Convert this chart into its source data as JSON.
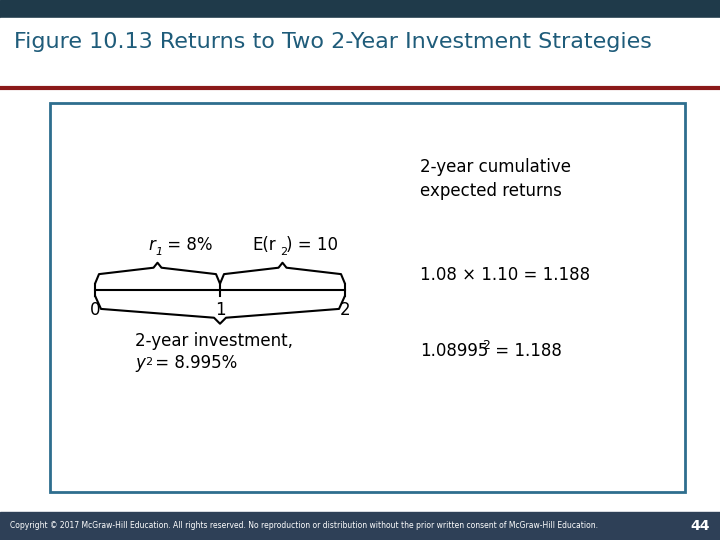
{
  "title": "Figure 10.13 Returns to Two 2-Year Investment Strategies",
  "title_color": "#1F5C7A",
  "title_fontsize": 16,
  "bg_color": "#FFFFFF",
  "header_bar_color": "#8B1A1A",
  "top_bar_color": "#1F3A4A",
  "footer_color": "#2E4057",
  "footer_text": "Copyright © 2017 McGraw-Hill Education. All rights reserved. No reproduction or distribution without the prior written consent of McGraw-Hill Education.",
  "page_number": "44",
  "box_color": "#2E6E8E",
  "top_label_r1": "r",
  "top_label_r1_sub": "1",
  "top_label_r1_rest": " = 8%",
  "top_label_er2": "E(r",
  "top_label_er2_sub": "2",
  "top_label_er2_rest": ") = 10",
  "bottom_label": "2-year investment,",
  "bottom_label2_pre": "y",
  "bottom_label2_sub": "2",
  "bottom_label2_rest": " = 8.995%",
  "right_header": "2-year cumulative\nexpected returns",
  "right_row1": "1.08 × 1.10 = 1.188",
  "right_row2_pre": "1.08995",
  "right_row2_sup": "2",
  "right_row2_rest": " = 1.188",
  "tick0": "0",
  "tick1": "1",
  "tick2": "2"
}
